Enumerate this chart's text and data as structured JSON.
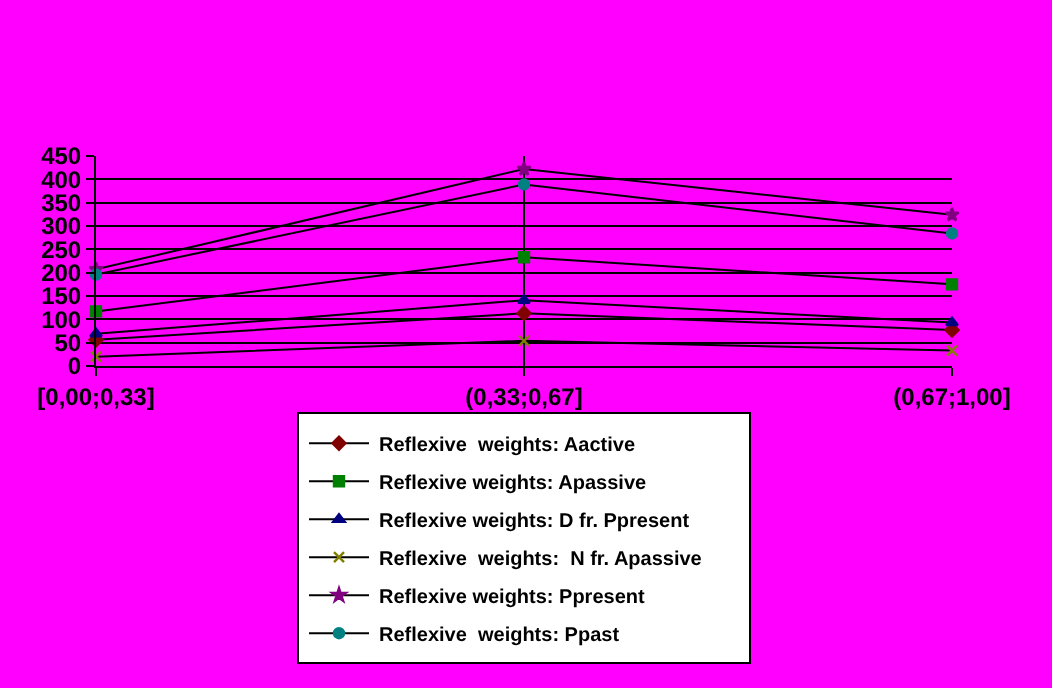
{
  "chart_data": {
    "type": "line",
    "categories": [
      "[0,00;0,33]",
      "(0,33;0,67]",
      "(0,67;1,00]"
    ],
    "series": [
      {
        "name": "Reflexive  weights: Aactive",
        "color": "#800000",
        "marker": "diamond",
        "values": [
          56,
          113,
          77
        ]
      },
      {
        "name": "Reflexive weights: Apassive",
        "color": "#008000",
        "marker": "square",
        "values": [
          117,
          233,
          175
        ]
      },
      {
        "name": "Reflexive weights: D fr. Ppresent",
        "color": "#000080",
        "marker": "triangle",
        "values": [
          69,
          141,
          93
        ]
      },
      {
        "name": "Reflexive  weights:  N fr. Apassive",
        "color": "#808000",
        "marker": "cross",
        "values": [
          20,
          54,
          33
        ]
      },
      {
        "name": "Reflexive weights: Ppresent",
        "color": "#800080",
        "marker": "star",
        "values": [
          207,
          422,
          324
        ]
      },
      {
        "name": "Reflexive  weights: Ppast",
        "color": "#008080",
        "marker": "circle",
        "values": [
          196,
          389,
          284
        ]
      }
    ],
    "ylim": [
      0,
      450
    ],
    "yticks": [
      0,
      50,
      100,
      150,
      200,
      250,
      300,
      350,
      400,
      450
    ],
    "grid": true,
    "legend": "bottom",
    "line_style": "solid"
  }
}
